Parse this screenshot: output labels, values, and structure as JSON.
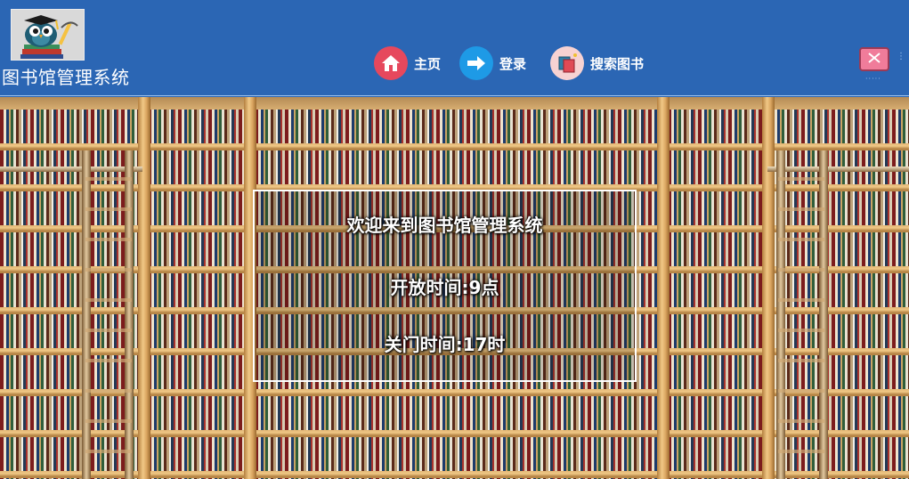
{
  "header": {
    "app_title": "图书馆管理系统",
    "logo_icon": "owl-graduate-books-icon",
    "background_color": "#2b66b4"
  },
  "nav": {
    "items": [
      {
        "label": "主页",
        "icon": "home-icon",
        "color": "#e6485d"
      },
      {
        "label": "登录",
        "icon": "arrow-right-icon",
        "color": "#1e9ae6"
      },
      {
        "label": "搜索图书",
        "icon": "books-search-icon",
        "color": "#f7d2d2"
      }
    ]
  },
  "window": {
    "close_icon": "close-icon",
    "close_color": "#f07c9a"
  },
  "welcome": {
    "title": "欢迎来到图书馆管理系统",
    "open_time": "开放时间:9点",
    "close_time": "关门时间:17时"
  },
  "background": {
    "image": "library-bookshelves-backdrop"
  }
}
